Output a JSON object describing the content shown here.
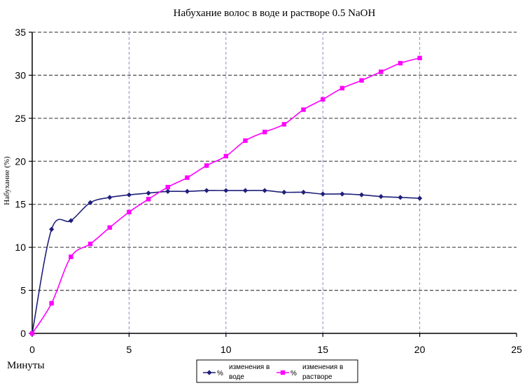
{
  "chart_data": {
    "type": "line",
    "title": "Набухание волос в воде и растворе 0.5 NaOH",
    "xlabel": "Минуты",
    "ylabel": "Набухание (%)",
    "xlim": [
      0,
      25
    ],
    "ylim": [
      0,
      35
    ],
    "x_ticks": [
      "0",
      "5",
      "10",
      "15",
      "20",
      "25"
    ],
    "y_ticks": [
      "0",
      "5",
      "10",
      "15",
      "20",
      "25",
      "30",
      "35"
    ],
    "grid": "horizontal dashed at every y tick, vertical dashed at x = 5, 10, 15, 20",
    "legend_position": "bottom-center",
    "series": [
      {
        "name": "% изменения в воде",
        "legend_symbol": "%",
        "legend_text": [
          "изменения в",
          "воде"
        ],
        "color": "#1f1f7a",
        "marker": "diamond",
        "x": [
          0,
          1,
          2,
          3,
          4,
          5,
          6,
          7,
          8,
          9,
          10,
          11,
          12,
          13,
          14,
          15,
          16,
          17,
          18,
          19,
          20
        ],
        "y": [
          0,
          12.1,
          13.1,
          15.2,
          15.8,
          16.1,
          16.3,
          16.5,
          16.5,
          16.6,
          16.6,
          16.6,
          16.6,
          16.4,
          16.4,
          16.2,
          16.2,
          16.1,
          15.9,
          15.8,
          15.7
        ]
      },
      {
        "name": "% изменения в растворе",
        "legend_symbol": "%",
        "legend_text": [
          "изменения в",
          "растворе"
        ],
        "color": "#ff00ff",
        "marker": "square",
        "x": [
          0,
          1,
          2,
          3,
          4,
          5,
          6,
          7,
          8,
          9,
          10,
          11,
          12,
          13,
          14,
          15,
          16,
          17,
          18,
          19,
          20
        ],
        "y": [
          0,
          3.5,
          8.9,
          10.4,
          12.3,
          14.1,
          15.6,
          17.0,
          18.1,
          19.5,
          20.6,
          22.4,
          23.4,
          24.3,
          26.0,
          27.2,
          28.5,
          29.4,
          30.4,
          31.4,
          32.0
        ]
      }
    ]
  }
}
